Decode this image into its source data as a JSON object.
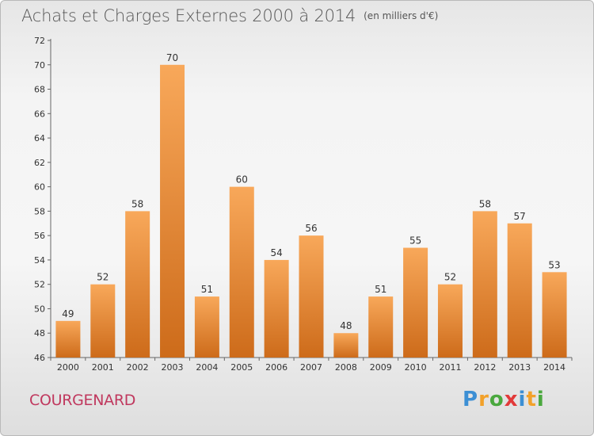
{
  "chart_data": {
    "type": "bar",
    "title": "Achats et Charges Externes 2000 à 2014",
    "unit": "(en milliers d'€)",
    "subtitle": "COURGENARD",
    "categories": [
      "2000",
      "2001",
      "2002",
      "2003",
      "2004",
      "2005",
      "2006",
      "2007",
      "2008",
      "2009",
      "2010",
      "2011",
      "2012",
      "2013",
      "2014"
    ],
    "values": [
      49,
      52,
      58,
      70,
      51,
      60,
      54,
      56,
      48,
      51,
      55,
      52,
      58,
      57,
      53
    ],
    "ylim": [
      46,
      72
    ],
    "yticks": [
      46,
      48,
      50,
      52,
      54,
      56,
      58,
      60,
      62,
      64,
      66,
      68,
      70,
      72
    ],
    "grid": false,
    "bar_color": "#e8862e"
  },
  "logo": {
    "letters": [
      "P",
      "r",
      "o",
      "x",
      "i",
      "t",
      "i"
    ],
    "colors": [
      "#3c8fd4",
      "#f2a12a",
      "#4aa83e",
      "#e23a3a",
      "#3c8fd4",
      "#f2a12a",
      "#4aa83e"
    ]
  }
}
